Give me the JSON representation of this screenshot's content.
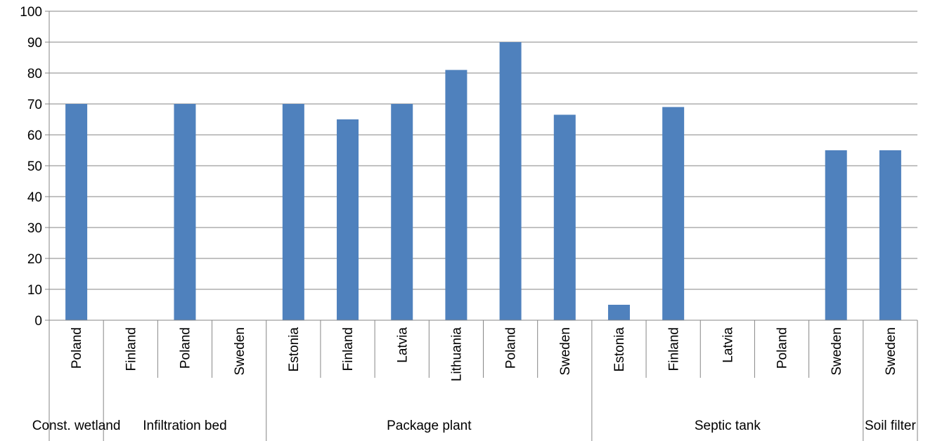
{
  "chart_data": {
    "type": "bar",
    "title": "",
    "xlabel": "",
    "ylabel": "",
    "ylim": [
      0,
      100
    ],
    "yticks": [
      "0",
      "10",
      "20",
      "30",
      "40",
      "50",
      "60",
      "70",
      "80",
      "90",
      "100"
    ],
    "grid": true,
    "legend": "none",
    "bar_color": "#4f81bd",
    "categories": [
      "Poland",
      "Finland",
      "Poland",
      "Sweden",
      "Estonia",
      "Finland",
      "Latvia",
      "Lithuania",
      "Poland",
      "Sweden",
      "Estonia",
      "Finland",
      "Latvia",
      "Poland",
      "Sweden",
      "Sweden"
    ],
    "values": [
      70,
      null,
      70,
      null,
      70,
      65,
      70,
      81,
      90,
      66.5,
      5,
      69,
      null,
      null,
      55,
      55
    ],
    "groups": [
      {
        "label": "Const. wetland",
        "count": 1
      },
      {
        "label": "Infiltration bed",
        "count": 3
      },
      {
        "label": "Package plant",
        "count": 6
      },
      {
        "label": "Septic tank",
        "count": 5
      },
      {
        "label": "Soil filter",
        "count": 1
      }
    ]
  }
}
